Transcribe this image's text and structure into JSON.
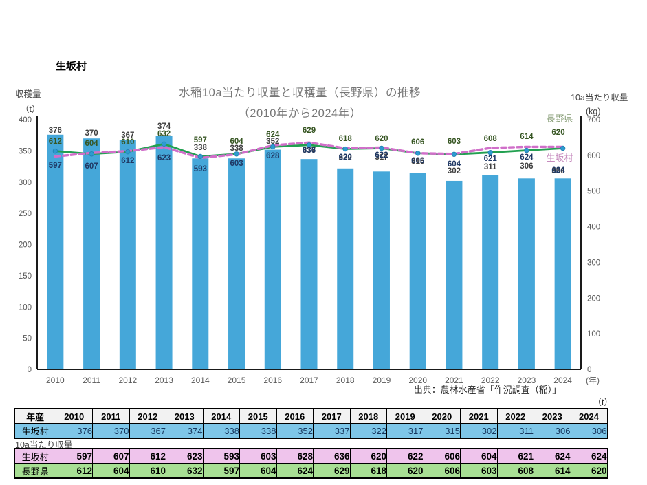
{
  "page": {
    "header": "生坂村"
  },
  "chart_data": {
    "type": "combo-bar-line",
    "title_line1": "水稲10a当たり収量と収穫量（長野県）の推移",
    "title_line2": "（2010年から2024年）",
    "categories": [
      "2010",
      "2011",
      "2012",
      "2013",
      "2014",
      "2015",
      "2016",
      "2017",
      "2018",
      "2019",
      "2020",
      "2021",
      "2022",
      "2023",
      "2024"
    ],
    "series": [
      {
        "name": "生坂村 収穫量",
        "type": "bar",
        "axis": "left",
        "unit": "t",
        "color": "#45A7D9",
        "label_color": "#404040",
        "values": [
          376,
          370,
          367,
          374,
          338,
          338,
          352,
          337,
          322,
          317,
          315,
          302,
          311,
          306,
          306
        ]
      },
      {
        "name": "生坂村",
        "type": "line",
        "style": "dashed",
        "axis": "right",
        "unit": "kg",
        "color": "#D06FC9",
        "label_color": "#1F3864",
        "values": [
          597,
          607,
          612,
          623,
          593,
          603,
          628,
          636,
          620,
          622,
          606,
          604,
          621,
          624,
          624
        ]
      },
      {
        "name": "長野県",
        "type": "line",
        "style": "solid",
        "axis": "right",
        "unit": "kg",
        "color": "#22A050",
        "marker_color": "#2E9BD0",
        "label_color": "#375623",
        "values": [
          612,
          604,
          610,
          632,
          597,
          604,
          624,
          629,
          618,
          620,
          606,
          603,
          608,
          614,
          620
        ]
      }
    ],
    "left_axis": {
      "label": "収穫量",
      "unit": "（t）",
      "ticks": [
        400,
        350,
        300,
        250,
        200,
        150,
        100,
        50,
        0
      ],
      "range": [
        0,
        400
      ]
    },
    "right_axis": {
      "label": "10a当たり収量",
      "unit": "(kg)",
      "ticks": [
        700,
        600,
        500,
        400,
        300,
        200,
        100,
        0
      ],
      "range": [
        0,
        700
      ]
    },
    "x_axis_unit": "(年)",
    "source": "出典：農林水産省「作況調査（稲）」",
    "end_labels": [
      {
        "text": "長野県",
        "color": "#849B73"
      },
      {
        "text": "生坂村",
        "color": "#C68BBE"
      }
    ],
    "grid": false,
    "legend_position": "line-end"
  },
  "tables": {
    "harvest": {
      "corner": "年産",
      "years": [
        "2010",
        "2011",
        "2012",
        "2013",
        "2014",
        "2015",
        "2016",
        "2017",
        "2018",
        "2019",
        "2020",
        "2021",
        "2022",
        "2023",
        "2024"
      ],
      "row_label": "生坂村",
      "values": [
        376,
        370,
        367,
        374,
        338,
        338,
        352,
        337,
        322,
        317,
        315,
        302,
        311,
        306,
        306
      ],
      "unit": "（t）",
      "row_bg": "#7EC6E8"
    },
    "yield": {
      "section_label": "10a当たり収量",
      "rows": [
        {
          "label": "生坂村",
          "values": [
            597,
            607,
            612,
            623,
            593,
            603,
            628,
            636,
            620,
            622,
            606,
            604,
            621,
            624,
            624
          ],
          "bg": "#EFC4EC"
        },
        {
          "label": "長野県",
          "values": [
            612,
            604,
            610,
            632,
            597,
            604,
            624,
            629,
            618,
            620,
            606,
            603,
            608,
            614,
            620
          ],
          "bg": "#A8DF94"
        }
      ]
    }
  }
}
